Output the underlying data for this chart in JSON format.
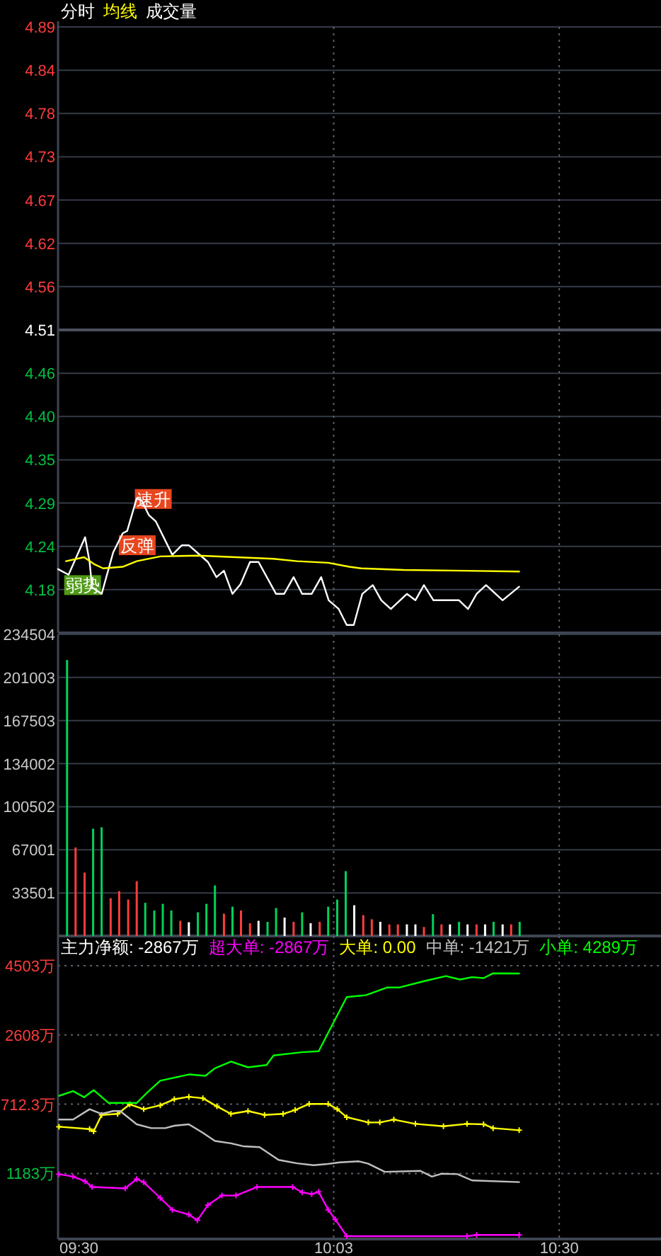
{
  "chart_data": [
    {
      "type": "line",
      "xlim": [
        9.5,
        10.703
      ],
      "xticks": [
        {
          "value": 10.05,
          "label": null
        },
        {
          "value": 10.5,
          "label": null
        }
      ],
      "tick_labels": "y",
      "ylim": [
        4.13,
        4.89
      ],
      "yticks": [
        {
          "value": 4.89,
          "label": "4.89"
        },
        {
          "value": 4.8357,
          "label": "4.84"
        },
        {
          "value": 4.7814,
          "label": "4.78"
        },
        {
          "value": 4.7271,
          "label": "4.73"
        },
        {
          "value": 4.6729,
          "label": "4.67"
        },
        {
          "value": 4.6186,
          "label": "4.62"
        },
        {
          "value": 4.5643,
          "label": "4.56"
        },
        {
          "value": 4.51,
          "label": "4.51"
        },
        {
          "value": 4.4557,
          "label": "4.46"
        },
        {
          "value": 4.4014,
          "label": "4.40"
        },
        {
          "value": 4.3471,
          "label": "4.35"
        },
        {
          "value": 4.2929,
          "label": "4.29"
        },
        {
          "value": 4.2386,
          "label": "4.24"
        },
        {
          "value": 4.1843,
          "label": "4.18"
        }
      ],
      "grid": true,
      "legend": "top",
      "ref_lines": [
        {
          "axis": "y",
          "value": 4.51
        }
      ],
      "annotations": [
        {
          "text": "速升",
          "x": 9.69,
          "y": 4.298
        },
        {
          "text": "反弹",
          "x": 9.658,
          "y": 4.24
        },
        {
          "text": "弱势",
          "x": 9.549,
          "y": 4.19
        }
      ],
      "series": [
        {
          "name": "分时",
          "color": "#ffffff",
          "x": [
            9.5,
            9.521,
            9.554,
            9.563,
            9.568,
            9.587,
            9.61,
            9.629,
            9.638,
            9.657,
            9.667,
            9.681,
            9.695,
            9.728,
            9.747,
            9.761,
            9.799,
            9.816,
            9.831,
            9.848,
            9.864,
            9.883,
            9.9,
            9.935,
            9.951,
            9.97,
            9.987,
            10.006,
            10.025,
            10.04,
            10.06,
            10.076,
            10.09,
            10.107,
            10.128,
            10.145,
            10.164,
            10.196,
            10.213,
            10.23,
            10.249,
            10.3,
            10.318,
            10.335,
            10.354,
            10.387,
            10.42
          ],
          "values": [
            4.21,
            4.203,
            4.25,
            4.219,
            4.187,
            4.179,
            4.231,
            4.255,
            4.258,
            4.299,
            4.296,
            4.278,
            4.27,
            4.228,
            4.24,
            4.24,
            4.219,
            4.2,
            4.208,
            4.179,
            4.191,
            4.219,
            4.219,
            4.179,
            4.179,
            4.2,
            4.179,
            4.179,
            4.2,
            4.171,
            4.16,
            4.14,
            4.14,
            4.179,
            4.19,
            4.171,
            4.16,
            4.179,
            4.171,
            4.19,
            4.171,
            4.171,
            4.16,
            4.179,
            4.19,
            4.171,
            4.188
          ]
        },
        {
          "name": "均线",
          "color": "#ffff00",
          "x": [
            9.516,
            9.552,
            9.573,
            9.59,
            9.629,
            9.657,
            9.704,
            9.78,
            9.93,
            9.977,
            10.039,
            10.081,
            10.105,
            10.189,
            10.312,
            10.42
          ],
          "values": [
            4.22,
            4.225,
            4.216,
            4.211,
            4.213,
            4.22,
            4.226,
            4.227,
            4.223,
            4.22,
            4.218,
            4.213,
            4.211,
            4.209,
            4.208,
            4.207
          ]
        }
      ]
    },
    {
      "type": "bar",
      "xlim": [
        9.5,
        10.703
      ],
      "xticks": [
        {
          "value": 10.05,
          "label": null
        },
        {
          "value": 10.5,
          "label": null
        }
      ],
      "tick_labels": "y",
      "ylim": [
        0,
        234504
      ],
      "yticks": [
        33501,
        67001,
        100502,
        134002,
        167503,
        201003,
        234504
      ],
      "grid": true,
      "legend": "top",
      "series": [
        {
          "name": "成交量",
          "color": "#ffffff",
          "x": [
            9.518,
            9.535,
            9.553,
            9.57,
            9.587,
            9.605,
            9.622,
            9.64,
            9.657,
            9.674,
            9.692,
            9.709,
            9.726,
            9.744,
            9.761,
            9.779,
            9.796,
            9.813,
            9.831,
            9.848,
            9.865,
            9.883,
            9.9,
            9.918,
            9.935,
            9.952,
            9.97,
            9.987,
            10.004,
            10.022,
            10.039,
            10.057,
            10.074,
            10.091,
            10.109,
            10.126,
            10.143,
            10.161,
            10.178,
            10.196,
            10.213,
            10.23,
            10.248,
            10.265,
            10.282,
            10.3,
            10.317,
            10.335,
            10.352,
            10.369,
            10.387,
            10.404,
            10.421
          ],
          "values": [
            214600,
            68800,
            49300,
            83400,
            84500,
            29400,
            34900,
            28300,
            42600,
            25800,
            19800,
            25000,
            19800,
            11800,
            10700,
            18400,
            25000,
            39300,
            17300,
            22800,
            19800,
            9900,
            11800,
            11000,
            21700,
            14300,
            11000,
            18400,
            9900,
            11000,
            22800,
            28300,
            50400,
            23900,
            16200,
            13000,
            11000,
            9000,
            9000,
            9000,
            9000,
            7000,
            17000,
            9000,
            9000,
            11000,
            9000,
            9000,
            9000,
            11000,
            9000,
            9000,
            11000
          ],
          "colors": [
            "#00d25a",
            "#ff3c3c",
            "#ff3c3c",
            "#00d25a",
            "#00d25a",
            "#ff3c3c",
            "#ff3c3c",
            "#ff3c3c",
            "#ff3c3c",
            "#00d25a",
            "#00d25a",
            "#00d25a",
            "#00d25a",
            "#ff3c3c",
            "#ffffff",
            "#00d25a",
            "#00d25a",
            "#00d25a",
            "#ff3c3c",
            "#00d25a",
            "#ff3c3c",
            "#ff3c3c",
            "#ffffff",
            "#00d25a",
            "#00d25a",
            "#ffffff",
            "#ff3c3c",
            "#00d25a",
            "#ffffff",
            "#ff3c3c",
            "#00d25a",
            "#00d25a",
            "#00d25a",
            "#ffffff",
            "#ff3c3c",
            "#ff3c3c",
            "#ffffff",
            "#ff3c3c",
            "#ff3c3c",
            "#ffffff",
            "#ffffff",
            "#ff3c3c",
            "#00d25a",
            "#ff3c3c",
            "#ffffff",
            "#00d25a",
            "#ffffff",
            "#ff3c3c",
            "#ffffff",
            "#00d25a",
            "#ffffff",
            "#ff3c3c",
            "#00d25a"
          ]
        }
      ]
    },
    {
      "type": "line",
      "xlim": [
        9.5,
        10.703
      ],
      "xticks": [
        {
          "value": 9.5,
          "label": "09:30"
        },
        {
          "value": 10.05,
          "label": "10:03"
        },
        {
          "value": 10.5,
          "label": "10:30"
        }
      ],
      "ylim": [
        -2978,
        5317
      ],
      "yticks": [
        {
          "value": 4503,
          "label": "4503万"
        },
        {
          "value": 2608,
          "label": "2608万"
        },
        {
          "value": 712.3,
          "label": "712.3万"
        },
        {
          "value": -1183,
          "label": "1183万"
        }
      ],
      "grid": true,
      "legend": "top right",
      "annotations": [
        "主力净额: -2867万"
      ],
      "series": [
        {
          "name": "超大单: -2867万",
          "color": "#ff00ff",
          "marker": "cross",
          "x": [
            9.502,
            9.53,
            9.554,
            9.568,
            9.634,
            9.657,
            9.671,
            9.704,
            9.728,
            9.761,
            9.778,
            9.799,
            9.827,
            9.855,
            9.897,
            9.968,
            9.987,
            10.006,
            10.02,
            10.039,
            10.053,
            10.076,
            10.316,
            10.335,
            10.42
          ],
          "values": [
            -1203,
            -1269,
            -1398,
            -1554,
            -1593,
            -1335,
            -1425,
            -1854,
            -2178,
            -2310,
            -2466,
            -2049,
            -1788,
            -1788,
            -1554,
            -1554,
            -1698,
            -1749,
            -1686,
            -2178,
            -2439,
            -2900,
            -2900,
            -2867,
            -2867
          ]
        },
        {
          "name": "大单: 0.00",
          "color": "#ffff00",
          "marker": "cross",
          "x": [
            9.502,
            9.563,
            9.571,
            9.587,
            9.619,
            9.643,
            9.671,
            9.704,
            9.732,
            9.761,
            9.789,
            9.817,
            9.845,
            9.879,
            9.912,
            9.949,
            9.973,
            10.001,
            10.039,
            10.057,
            10.076,
            10.119,
            10.142,
            10.17,
            10.213,
            10.269,
            10.316,
            10.349,
            10.368,
            10.42
          ],
          "values": [
            96,
            30,
            -33,
            420,
            447,
            708,
            576,
            681,
            849,
            915,
            876,
            654,
            447,
            525,
            420,
            447,
            552,
            720,
            720,
            576,
            357,
            213,
            213,
            291,
            174,
            108,
            174,
            162,
            57,
            0
          ]
        },
        {
          "name": "中单: -1421万",
          "color": "#c0c0c0",
          "x": [
            9.502,
            9.53,
            9.563,
            9.587,
            9.61,
            9.624,
            9.657,
            9.686,
            9.714,
            9.732,
            9.761,
            9.789,
            9.813,
            9.845,
            9.869,
            9.902,
            9.94,
            9.977,
            10.01,
            10.034,
            10.062,
            10.1,
            10.119,
            10.152,
            10.223,
            10.246,
            10.265,
            10.297,
            10.326,
            10.42
          ],
          "values": [
            291,
            291,
            576,
            447,
            525,
            525,
            162,
            57,
            57,
            123,
            162,
            -72,
            -294,
            -360,
            -438,
            -462,
            -813,
            -906,
            -957,
            -930,
            -879,
            -852,
            -918,
            -1140,
            -1113,
            -1269,
            -1191,
            -1203,
            -1374,
            -1421
          ]
        },
        {
          "name": "小单: 4289万",
          "color": "#00ff00",
          "x": [
            9.502,
            9.53,
            9.552,
            9.571,
            9.601,
            9.657,
            9.676,
            9.704,
            9.761,
            9.794,
            9.813,
            9.845,
            9.879,
            9.916,
            9.93,
            9.987,
            10.02,
            10.076,
            10.114,
            10.156,
            10.18,
            10.232,
            10.274,
            10.302,
            10.326,
            10.349,
            10.368,
            10.42
          ],
          "values": [
            942,
            1071,
            903,
            1098,
            747,
            747,
            1005,
            1356,
            1527,
            1488,
            1695,
            1878,
            1722,
            1785,
            2046,
            2136,
            2163,
            3645,
            3696,
            3906,
            3906,
            4086,
            4218,
            4125,
            4191,
            4164,
            4296,
            4289
          ]
        }
      ]
    }
  ]
}
